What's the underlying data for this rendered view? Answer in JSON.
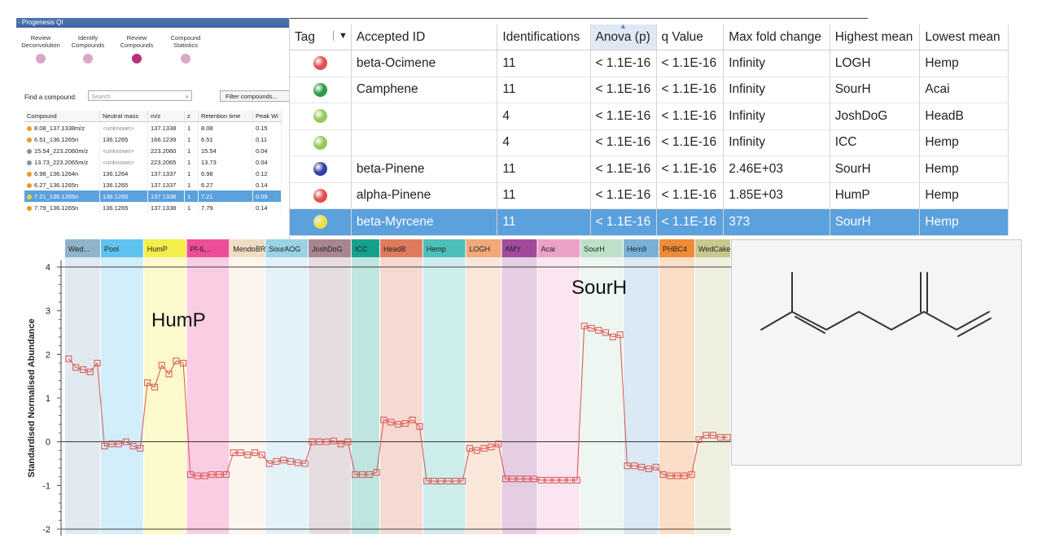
{
  "progenesis": {
    "title": "- Progenesis QI",
    "workflow": [
      {
        "label": "Review Deconvolution",
        "active": false
      },
      {
        "label": "Identify Compounds",
        "active": false
      },
      {
        "label": "Review Compounds",
        "active": true
      },
      {
        "label": "Compound Statistics",
        "active": false
      }
    ],
    "find_label": "Find a compound:",
    "search_placeholder": "Search",
    "filter_button": "Filter compounds...",
    "columns": [
      "Compound",
      "Neutral mass",
      "m/z",
      "z",
      "Retention time",
      "Peak Wi"
    ],
    "rows": [
      {
        "dot_color": "#e0a020",
        "compound": "8.08_137.1338m/z",
        "neutral_mass": "<unknown>",
        "mz": "137.1338",
        "z": "1",
        "rt": "8.08",
        "pw": "0.15",
        "selected": false
      },
      {
        "dot_color": "#e0a020",
        "compound": "6.51_136.1265n",
        "neutral_mass": "136.1265",
        "mz": "166.1239",
        "z": "1",
        "rt": "6.51",
        "pw": "0.11",
        "selected": false
      },
      {
        "dot_color": "#8c9099",
        "compound": "15.54_223.2060m/z",
        "neutral_mass": "<unknown>",
        "mz": "223.2060",
        "z": "1",
        "rt": "15.54",
        "pw": "0.04",
        "selected": false
      },
      {
        "dot_color": "#8c9099",
        "compound": "13.73_223.2065m/z",
        "neutral_mass": "<unknown>",
        "mz": "223.2065",
        "z": "1",
        "rt": "13.73",
        "pw": "0.04",
        "selected": false
      },
      {
        "dot_color": "#e0a020",
        "compound": "6.98_136.1264n",
        "neutral_mass": "136.1264",
        "mz": "137.1337",
        "z": "1",
        "rt": "6.98",
        "pw": "0.12",
        "selected": false
      },
      {
        "dot_color": "#e0a020",
        "compound": "6.27_136.1265n",
        "neutral_mass": "136.1265",
        "mz": "137.1337",
        "z": "1",
        "rt": "6.27",
        "pw": "0.14",
        "selected": false
      },
      {
        "dot_color": "#f0d040",
        "compound": "7.21_136.1265n",
        "neutral_mass": "136.1265",
        "mz": "137.1338",
        "z": "1",
        "rt": "7.21",
        "pw": "0.09",
        "selected": true
      },
      {
        "dot_color": "#e0a020",
        "compound": "7.79_136.1265n",
        "neutral_mass": "136.1265",
        "mz": "137.1338",
        "z": "1",
        "rt": "7.79",
        "pw": "0.14",
        "selected": false
      }
    ]
  },
  "main_table": {
    "columns": [
      "Tag",
      "Accepted ID",
      "Identifications",
      "Anova (p)",
      "q Value",
      "Max fold change",
      "Highest mean",
      "Lowest mean"
    ],
    "rows": [
      {
        "tag_color": "#e05050",
        "id": "beta-Ocimene",
        "ident": "11",
        "anova": "< 1.1E-16",
        "q": "< 1.1E-16",
        "fold": "Infinity",
        "highest": "LOGH",
        "lowest": "Hemp",
        "selected": false
      },
      {
        "tag_color": "#2e9a4e",
        "id": "Camphene",
        "ident": "11",
        "anova": "< 1.1E-16",
        "q": "< 1.1E-16",
        "fold": "Infinity",
        "highest": "SourH",
        "lowest": "Acai",
        "selected": false
      },
      {
        "tag_color": "#98c858",
        "id": "",
        "ident": "4",
        "anova": "< 1.1E-16",
        "q": "< 1.1E-16",
        "fold": "Infinity",
        "highest": "JoshDoG",
        "lowest": "HeadB",
        "selected": false
      },
      {
        "tag_color": "#98c858",
        "id": "",
        "ident": "4",
        "anova": "< 1.1E-16",
        "q": "< 1.1E-16",
        "fold": "Infinity",
        "highest": "ICC",
        "lowest": "Hemp",
        "selected": false
      },
      {
        "tag_color": "#3040a0",
        "id": "beta-Pinene",
        "ident": "11",
        "anova": "< 1.1E-16",
        "q": "< 1.1E-16",
        "fold": "2.46E+03",
        "highest": "SourH",
        "lowest": "Hemp",
        "selected": false
      },
      {
        "tag_color": "#e05050",
        "id": "alpha-Pinene",
        "ident": "11",
        "anova": "< 1.1E-16",
        "q": "< 1.1E-16",
        "fold": "1.85E+03",
        "highest": "HumP",
        "lowest": "Hemp",
        "selected": false
      },
      {
        "tag_color": "#f0e040",
        "id": "beta-Myrcene",
        "ident": "11",
        "anova": "< 1.1E-16",
        "q": "< 1.1E-16",
        "fold": "373",
        "highest": "SourH",
        "lowest": "Hemp",
        "selected": true
      }
    ]
  },
  "chart_data": {
    "type": "line",
    "ylabel": "Standardised Normalised Abundance",
    "ylim": [
      -2,
      4
    ],
    "yticks": [
      -2,
      -1,
      0,
      1,
      2,
      3,
      4
    ],
    "annotations": [
      "HumP",
      "SourH"
    ],
    "line_color": "#d9534f",
    "groups": [
      {
        "name": "Wed...",
        "color": "#8fb3c9",
        "values": [
          1.9,
          1.7,
          1.65,
          1.6,
          1.8
        ]
      },
      {
        "name": "Pool",
        "color": "#5fc3ef",
        "values": [
          -0.1,
          -0.05,
          -0.05,
          0.0,
          -0.1,
          -0.15
        ]
      },
      {
        "name": "HumP",
        "color": "#f4ee4a",
        "values": [
          1.35,
          1.25,
          1.75,
          1.55,
          1.85,
          1.8
        ]
      },
      {
        "name": "Pf-IL...",
        "color": "#ee4d98",
        "values": [
          -0.75,
          -0.78,
          -0.78,
          -0.75,
          -0.75,
          -0.75
        ]
      },
      {
        "name": "MendoBR",
        "color": "#f0dcc2",
        "values": [
          -0.25,
          -0.25,
          -0.3,
          -0.25,
          -0.3
        ]
      },
      {
        "name": "SourAOG",
        "color": "#9ad2e6",
        "values": [
          -0.5,
          -0.45,
          -0.42,
          -0.45,
          -0.48,
          -0.5
        ]
      },
      {
        "name": "JoshDoG",
        "color": "#a7868f",
        "values": [
          0.0,
          0.0,
          0.0,
          0.02,
          -0.05,
          0.0
        ]
      },
      {
        "name": "ICC",
        "color": "#17a08e",
        "values": [
          -0.75,
          -0.75,
          -0.75,
          -0.7
        ]
      },
      {
        "name": "HeadB",
        "color": "#e07a5c",
        "values": [
          0.5,
          0.45,
          0.4,
          0.42,
          0.5,
          0.35
        ]
      },
      {
        "name": "Hemp",
        "color": "#4cbfbb",
        "values": [
          -0.9,
          -0.9,
          -0.9,
          -0.9,
          -0.9,
          -0.9
        ]
      },
      {
        "name": "LOGH",
        "color": "#f1a87a",
        "values": [
          -0.15,
          -0.2,
          -0.15,
          -0.12,
          -0.05
        ]
      },
      {
        "name": "AMY",
        "color": "#a14a9c",
        "values": [
          -0.85,
          -0.85,
          -0.85,
          -0.85,
          -0.85
        ]
      },
      {
        "name": "Acai",
        "color": "#eea1c8",
        "values": [
          -0.88,
          -0.88,
          -0.88,
          -0.88,
          -0.88,
          -0.88
        ]
      },
      {
        "name": "SourH",
        "color": "#bfe0c8",
        "values": [
          2.65,
          2.6,
          2.55,
          2.5,
          2.4,
          2.45
        ]
      },
      {
        "name": "Hem9",
        "color": "#7ab0d8",
        "values": [
          -0.55,
          -0.55,
          -0.58,
          -0.62,
          -0.58
        ]
      },
      {
        "name": "PHBC4",
        "color": "#ef8a36",
        "values": [
          -0.75,
          -0.78,
          -0.78,
          -0.78,
          -0.75
        ]
      },
      {
        "name": "WedCake",
        "color": "#c7c78e",
        "values": [
          0.05,
          0.15,
          0.15,
          0.1,
          0.1
        ]
      }
    ]
  }
}
